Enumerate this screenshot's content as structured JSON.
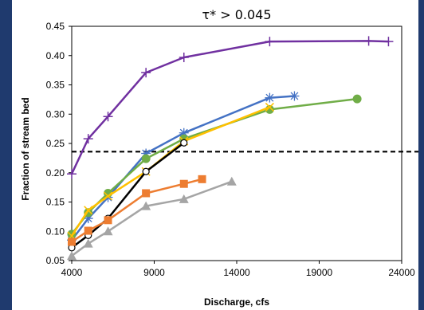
{
  "chart_data": {
    "type": "line",
    "title": "τ* > 0.045",
    "xlabel": "Discharge, cfs",
    "ylabel": "Fraction of stream bed",
    "xlim": [
      4000,
      24000
    ],
    "ylim": [
      0.05,
      0.45
    ],
    "xticks": [
      "4000",
      "9000",
      "14000",
      "19000",
      "24000"
    ],
    "yticks": [
      "0.05",
      "0.10",
      "0.15",
      "0.20",
      "0.25",
      "0.30",
      "0.35",
      "0.40",
      "0.45"
    ],
    "grid": false,
    "reference_line": {
      "y": 0.236,
      "style": "dashed",
      "color": "#000000"
    },
    "series": [
      {
        "color": "#7030a0",
        "marker": "plus",
        "x": [
          4000,
          5000,
          6200,
          8500,
          10800,
          16000,
          22000,
          23200
        ],
        "y": [
          0.198,
          0.258,
          0.296,
          0.371,
          0.397,
          0.424,
          0.425,
          0.424
        ]
      },
      {
        "color": "#4472c4",
        "marker": "asterisk",
        "x": [
          4000,
          5000,
          6200,
          8500,
          10800,
          16000,
          17500
        ],
        "y": [
          0.085,
          0.122,
          0.158,
          0.233,
          0.268,
          0.328,
          0.331
        ]
      },
      {
        "color": "#70ad47",
        "marker": "circle",
        "x": [
          4000,
          5000,
          6200,
          8500,
          10800,
          16000,
          21300
        ],
        "y": [
          0.095,
          0.132,
          0.165,
          0.224,
          0.258,
          0.308,
          0.326
        ]
      },
      {
        "color": "#ffc000",
        "marker": "x",
        "x": [
          4000,
          5000,
          6200,
          8500,
          10800,
          16000
        ],
        "y": [
          0.092,
          0.136,
          0.16,
          0.202,
          0.254,
          0.312
        ]
      },
      {
        "color": "#000000",
        "marker": "open-circle",
        "x": [
          4000,
          5000,
          6200,
          8500,
          10800
        ],
        "y": [
          0.072,
          0.093,
          0.122,
          0.202,
          0.251
        ]
      },
      {
        "color": "#ed7d31",
        "marker": "square",
        "x": [
          4000,
          5000,
          6200,
          8500,
          10800,
          11900
        ],
        "y": [
          0.082,
          0.101,
          0.119,
          0.165,
          0.181,
          0.189
        ]
      },
      {
        "color": "#a5a5a5",
        "marker": "triangle",
        "x": [
          4000,
          5000,
          6200,
          8500,
          10800,
          13700
        ],
        "y": [
          0.058,
          0.079,
          0.1,
          0.143,
          0.155,
          0.185
        ]
      }
    ]
  }
}
